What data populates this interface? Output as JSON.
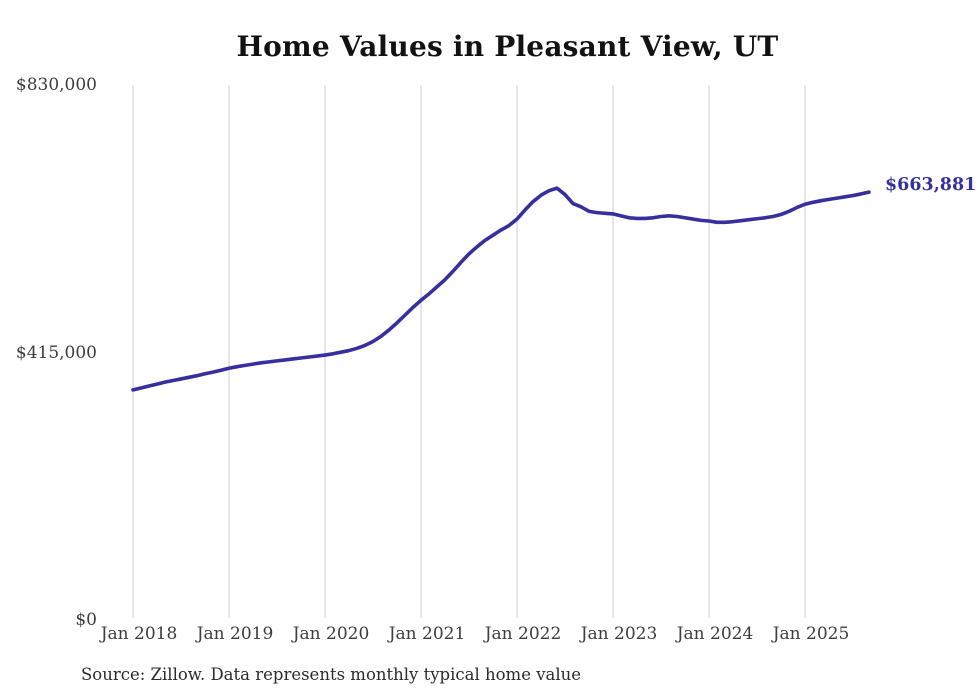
{
  "chart_data": {
    "type": "line",
    "title": "Home Values in Pleasant View, UT",
    "xlabel": "",
    "ylabel": "",
    "ylim": [
      0,
      830000
    ],
    "grid": "vertical-year-gridlines-only",
    "x_range": [
      "2018-01",
      "2025-09"
    ],
    "points_per_month": 1,
    "x_tick_labels": [
      "Jan 2018",
      "Jan 2019",
      "Jan 2020",
      "Jan 2021",
      "Jan 2022",
      "Jan 2023",
      "Jan 2024",
      "Jan 2025"
    ],
    "y_ticks": [
      {
        "label": "$0",
        "value": 0
      },
      {
        "label": "$415,000",
        "value": 415000
      },
      {
        "label": "$830,000",
        "value": 830000
      }
    ],
    "series": [
      {
        "name": "Monthly typical home value",
        "color": "#36309e",
        "values": [
          357000,
          360000,
          363000,
          366000,
          369000,
          371500,
          374000,
          376500,
          379000,
          382000,
          384500,
          387500,
          390500,
          393000,
          395000,
          397000,
          399000,
          400500,
          402000,
          403500,
          405000,
          406500,
          408000,
          409500,
          411000,
          413000,
          415500,
          418000,
          421500,
          426000,
          432000,
          440000,
          450000,
          461000,
          473000,
          485000,
          496000,
          506000,
          517000,
          528000,
          541000,
          555000,
          568000,
          579000,
          589000,
          597000,
          605000,
          612000,
          622000,
          636000,
          649000,
          659000,
          666000,
          670000,
          660000,
          646000,
          641000,
          634000,
          632000,
          631000,
          630000,
          627000,
          624000,
          623000,
          623000,
          624000,
          626000,
          627000,
          626000,
          624000,
          622000,
          620000,
          619000,
          617000,
          617000,
          618000,
          619500,
          621000,
          622500,
          624000,
          626000,
          629000,
          634000,
          640000,
          645000,
          648000,
          650500,
          652500,
          654500,
          656500,
          658500,
          661000,
          663881
        ]
      }
    ],
    "end_label": "$663,881",
    "latest_value": 663881,
    "source_note": "Source: Zillow. Data represents monthly typical home value",
    "colors": {
      "line": "#36309e",
      "gridline": "#cccccc",
      "tick_text": "#3d3d3d",
      "title_text": "#121212",
      "source_text": "#2b2b2b",
      "background": "#ffffff"
    },
    "legend": "none"
  }
}
